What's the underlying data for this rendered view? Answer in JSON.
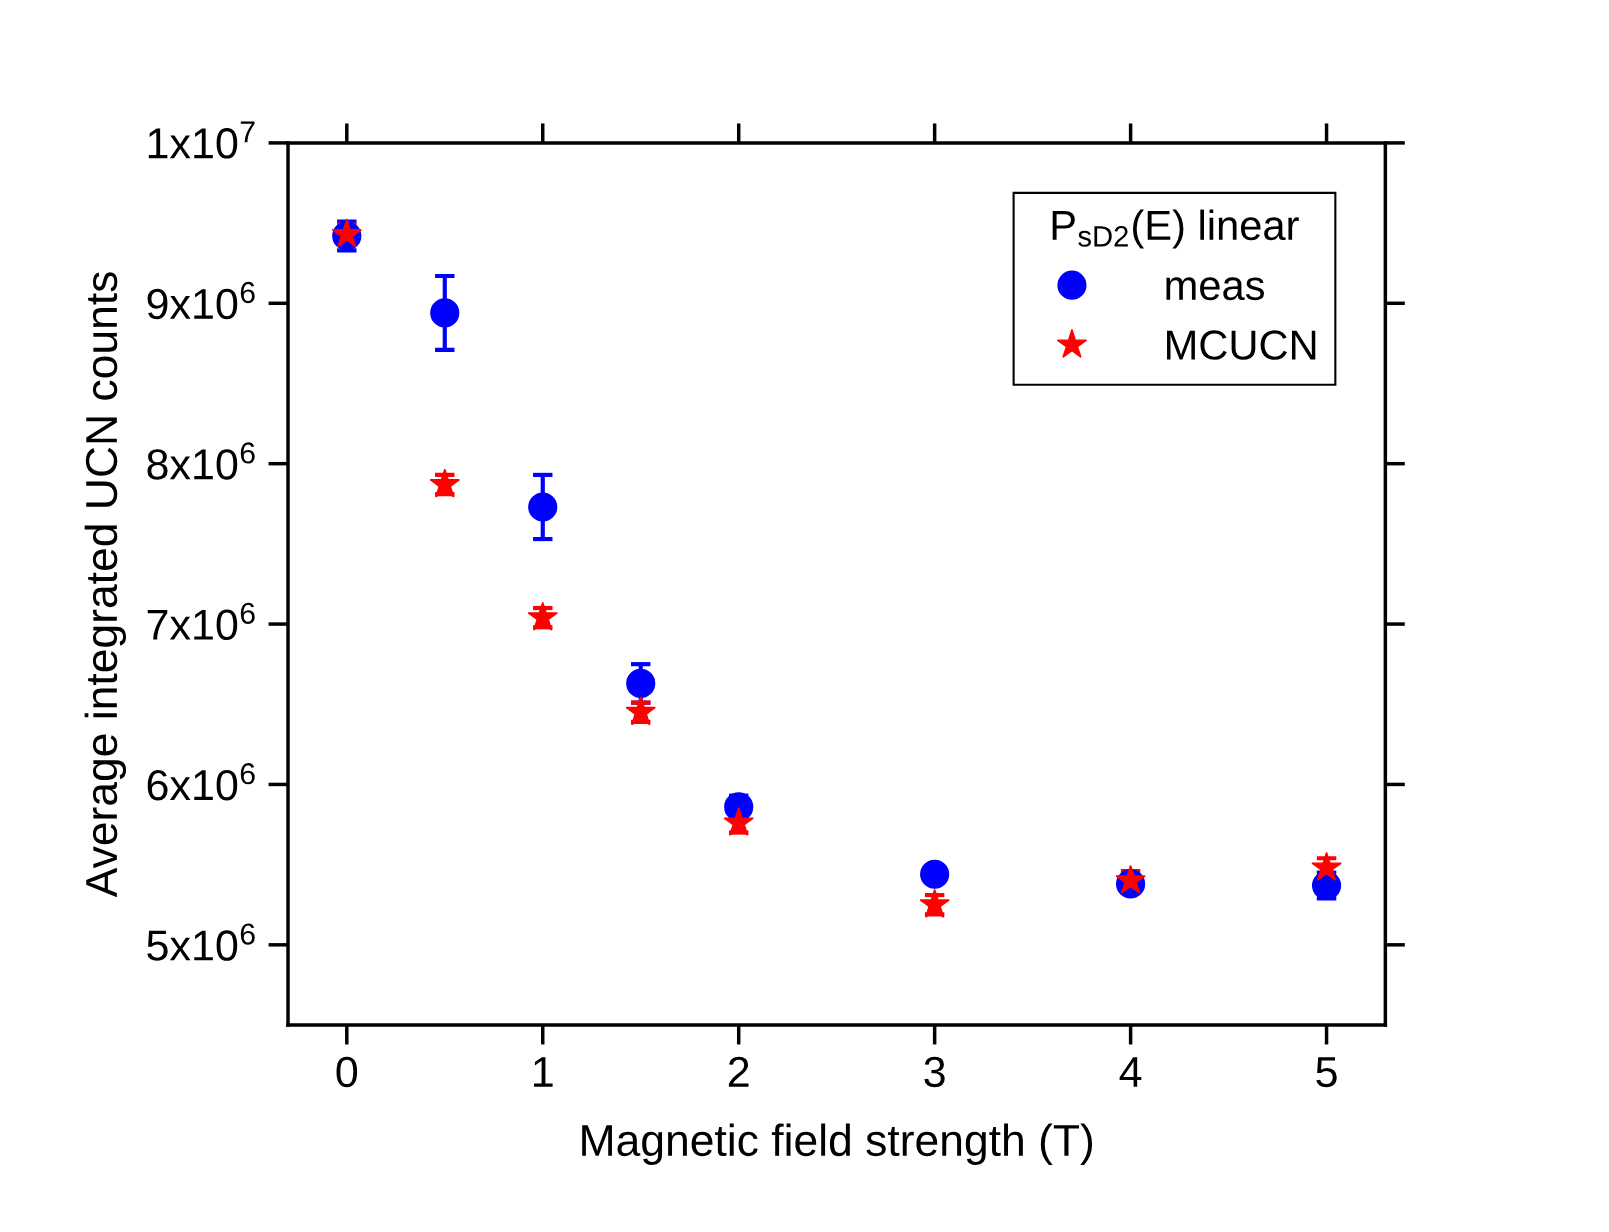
{
  "chart_data": {
    "type": "scatter",
    "xlabel": "Magnetic field strength (T)",
    "ylabel": "Average integrated UCN counts",
    "legend_title": "P$_{sD2}$(E) linear",
    "legend": "top right",
    "grid": false,
    "xlim": [
      -0.3,
      5.3
    ],
    "ylim": [
      4500000,
      10000000
    ],
    "xticks": [
      0,
      1,
      2,
      3,
      4,
      5
    ],
    "yticks": [
      {
        "value": 5000000,
        "label": "5x10$^{6}$"
      },
      {
        "value": 6000000,
        "label": "6x10$^{6}$"
      },
      {
        "value": 7000000,
        "label": "7x10$^{6}$"
      },
      {
        "value": 8000000,
        "label": "8x10$^{6}$"
      },
      {
        "value": 9000000,
        "label": "9x10$^{6}$"
      },
      {
        "value": 10000000,
        "label": "1x10$^{7}$"
      }
    ],
    "x": [
      0,
      0.5,
      1,
      1.5,
      2,
      3,
      4,
      5
    ],
    "series": [
      {
        "name": "meas",
        "color": "#0000ff",
        "marker": "circle",
        "values": [
          9420000,
          8940000,
          7730000,
          6630000,
          5860000,
          5440000,
          5380000,
          5370000
        ],
        "errors": [
          90000,
          230000,
          200000,
          120000,
          70000,
          40000,
          50000,
          80000
        ]
      },
      {
        "name": "MCUCN",
        "color": "#ff0000",
        "marker": "star",
        "values": [
          9430000,
          7870000,
          7040000,
          6450000,
          5760000,
          5250000,
          5400000,
          5480000
        ],
        "errors": [
          60000,
          60000,
          60000,
          60000,
          60000,
          60000,
          60000,
          60000
        ]
      }
    ]
  }
}
